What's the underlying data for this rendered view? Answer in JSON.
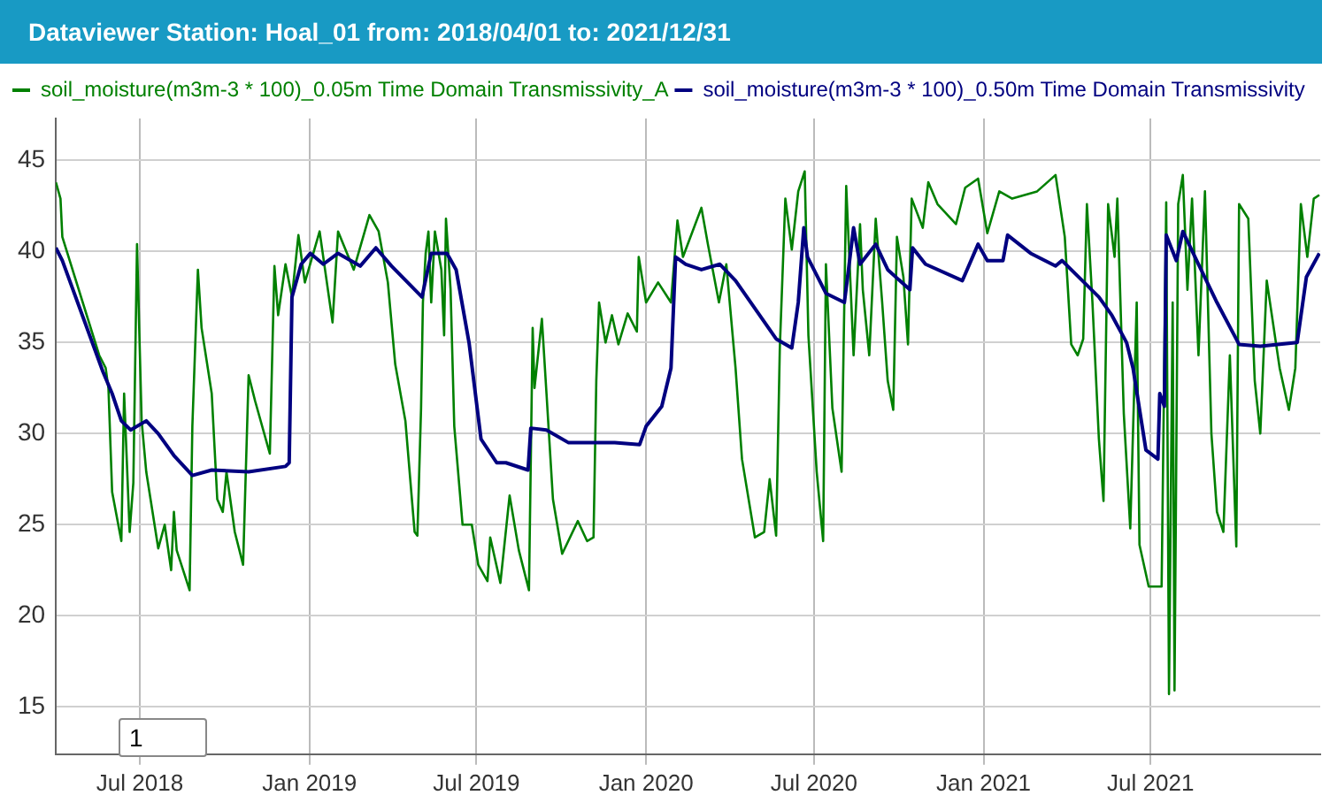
{
  "chart_data": {
    "type": "line",
    "title": "Dataviewer Station: Hoal_01 from: 2018/04/01 to: 2021/12/31",
    "legend": "top left",
    "grid": true,
    "marker": "none",
    "line_style": "solid",
    "xlim": [
      "2018-04-01",
      "2022-01-01"
    ],
    "xticks": [
      {
        "value": "2018-07-01",
        "label": "Jul 2018"
      },
      {
        "value": "2019-01-01",
        "label": "Jan 2019"
      },
      {
        "value": "2019-07-01",
        "label": "Jul 2019"
      },
      {
        "value": "2020-01-01",
        "label": "Jan 2020"
      },
      {
        "value": "2020-07-01",
        "label": "Jul 2020"
      },
      {
        "value": "2021-01-01",
        "label": "Jan 2021"
      },
      {
        "value": "2021-07-01",
        "label": "Jul 2021"
      }
    ],
    "ylim": [
      12.4,
      47.3
    ],
    "yticks": [
      15,
      20,
      25,
      30,
      35,
      40,
      45
    ],
    "annotations": [
      "1"
    ],
    "series": [
      {
        "name": "soil_moisture(m3m-3 * 100)_0.05m Time Domain Transmissivity_A",
        "color": "#008000",
        "x": [
          "2018-04-01",
          "2018-04-06",
          "2018-04-08",
          "2018-05-18",
          "2018-05-25",
          "2018-05-28",
          "2018-06-01",
          "2018-06-11",
          "2018-06-14",
          "2018-06-20",
          "2018-06-24",
          "2018-06-28",
          "2018-07-03",
          "2018-07-08",
          "2018-07-21",
          "2018-07-28",
          "2018-08-04",
          "2018-08-07",
          "2018-08-10",
          "2018-08-24",
          "2018-08-27",
          "2018-09-02",
          "2018-09-06",
          "2018-09-17",
          "2018-09-23",
          "2018-09-29",
          "2018-10-03",
          "2018-10-12",
          "2018-10-21",
          "2018-10-27",
          "2018-11-03",
          "2018-11-19",
          "2018-11-24",
          "2018-11-28",
          "2018-12-06",
          "2018-12-13",
          "2018-12-20",
          "2018-12-27",
          "2019-01-12",
          "2019-01-19",
          "2019-01-26",
          "2019-02-01",
          "2019-02-18",
          "2019-03-07",
          "2019-03-17",
          "2019-03-27",
          "2019-04-04",
          "2019-04-15",
          "2019-04-25",
          "2019-04-28",
          "2019-05-02",
          "2019-05-04",
          "2019-05-07",
          "2019-05-10",
          "2019-05-13",
          "2019-05-17",
          "2019-05-24",
          "2019-05-27",
          "2019-05-29",
          "2019-06-03",
          "2019-06-07",
          "2019-06-16",
          "2019-06-26",
          "2019-07-03",
          "2019-07-13",
          "2019-07-16",
          "2019-07-27",
          "2019-08-06",
          "2019-08-16",
          "2019-08-27",
          "2019-08-31",
          "2019-09-02",
          "2019-09-10",
          "2019-09-15",
          "2019-09-22",
          "2019-10-02",
          "2019-10-19",
          "2019-10-29",
          "2019-11-05",
          "2019-11-08",
          "2019-11-11",
          "2019-11-18",
          "2019-11-25",
          "2019-12-02",
          "2019-12-12",
          "2019-12-22",
          "2019-12-24",
          "2020-01-01",
          "2020-01-14",
          "2020-01-28",
          "2020-02-04",
          "2020-02-10",
          "2020-03-01",
          "2020-03-08",
          "2020-03-20",
          "2020-03-28",
          "2020-04-07",
          "2020-04-14",
          "2020-04-28",
          "2020-05-08",
          "2020-05-14",
          "2020-05-21",
          "2020-05-25",
          "2020-05-31",
          "2020-06-07",
          "2020-06-14",
          "2020-06-21",
          "2020-06-25",
          "2020-07-04",
          "2020-07-11",
          "2020-07-14",
          "2020-07-21",
          "2020-07-31",
          "2020-08-05",
          "2020-08-13",
          "2020-08-20",
          "2020-08-23",
          "2020-08-30",
          "2020-09-06",
          "2020-09-13",
          "2020-09-19",
          "2020-09-25",
          "2020-09-29",
          "2020-10-06",
          "2020-10-11",
          "2020-10-15",
          "2020-10-27",
          "2020-11-02",
          "2020-11-12",
          "2020-12-02",
          "2020-12-12",
          "2020-12-26",
          "2021-01-05",
          "2021-01-18",
          "2021-02-01",
          "2021-02-28",
          "2021-03-20",
          "2021-03-30",
          "2021-04-06",
          "2021-04-13",
          "2021-04-19",
          "2021-04-23",
          "2021-04-29",
          "2021-05-06",
          "2021-05-11",
          "2021-05-16",
          "2021-05-23",
          "2021-05-26",
          "2021-06-02",
          "2021-06-09",
          "2021-06-16",
          "2021-06-19",
          "2021-06-29",
          "2021-07-13",
          "2021-07-18",
          "2021-07-21",
          "2021-07-25",
          "2021-07-27",
          "2021-07-31",
          "2021-08-05",
          "2021-08-10",
          "2021-08-15",
          "2021-08-22",
          "2021-08-29",
          "2021-09-05",
          "2021-09-11",
          "2021-09-18",
          "2021-09-25",
          "2021-10-02",
          "2021-10-05",
          "2021-10-15",
          "2021-10-22",
          "2021-10-28",
          "2021-11-04",
          "2021-11-18",
          "2021-11-28",
          "2021-12-05",
          "2021-12-11",
          "2021-12-18",
          "2021-12-25",
          "2021-12-31"
        ],
        "values": [
          43.8,
          42.9,
          40.8,
          34.3,
          33.6,
          32.5,
          26.8,
          24.1,
          32.2,
          24.6,
          27.3,
          40.4,
          30.7,
          27.9,
          23.7,
          25.0,
          22.5,
          25.7,
          23.6,
          21.4,
          30.4,
          39.0,
          35.8,
          32.2,
          26.4,
          25.7,
          27.9,
          24.6,
          22.8,
          33.2,
          31.8,
          28.9,
          39.2,
          36.5,
          39.3,
          37.5,
          40.9,
          38.3,
          41.1,
          38.6,
          36.1,
          41.1,
          39.0,
          42.0,
          41.1,
          38.3,
          33.8,
          30.7,
          24.6,
          24.4,
          31.4,
          37.2,
          39.9,
          41.1,
          37.2,
          41.1,
          39.0,
          35.4,
          41.8,
          37.9,
          30.4,
          25.0,
          25.0,
          22.8,
          21.9,
          24.3,
          21.8,
          26.6,
          23.6,
          21.4,
          35.8,
          32.5,
          36.3,
          32.2,
          26.4,
          23.4,
          25.2,
          24.1,
          24.3,
          32.9,
          37.2,
          35.0,
          36.5,
          34.9,
          36.6,
          35.6,
          39.7,
          37.2,
          38.3,
          37.2,
          41.7,
          39.7,
          42.4,
          40.4,
          37.2,
          39.3,
          33.6,
          28.6,
          24.3,
          24.6,
          27.5,
          24.4,
          34.7,
          42.9,
          40.1,
          43.3,
          44.4,
          35.4,
          27.9,
          24.1,
          39.3,
          31.4,
          27.9,
          43.6,
          34.3,
          41.5,
          37.9,
          34.3,
          41.8,
          37.2,
          32.9,
          31.3,
          40.8,
          38.6,
          34.9,
          42.9,
          41.3,
          43.8,
          42.6,
          41.5,
          43.5,
          44.0,
          41.0,
          43.3,
          42.9,
          43.3,
          44.2,
          40.8,
          34.9,
          34.3,
          35.2,
          42.6,
          37.2,
          29.7,
          26.3,
          42.6,
          39.7,
          42.9,
          31.1,
          24.8,
          37.2,
          23.9,
          21.6,
          21.6,
          42.7,
          15.7,
          37.2,
          15.9,
          42.6,
          44.2,
          37.9,
          42.9,
          34.3,
          43.3,
          30.0,
          25.7,
          24.6,
          34.3,
          23.8,
          42.6,
          41.8,
          32.9,
          30.0,
          38.4,
          33.6,
          31.3,
          33.6,
          42.6,
          39.7,
          42.9,
          43.1
        ]
      },
      {
        "name": "soil_moisture(m3m-3 * 100)_0.50m Time Domain Transmissivity",
        "color": "#000080",
        "x": [
          "2018-04-01",
          "2018-04-08",
          "2018-05-22",
          "2018-06-01",
          "2018-06-11",
          "2018-06-21",
          "2018-07-08",
          "2018-07-21",
          "2018-08-07",
          "2018-08-27",
          "2018-09-17",
          "2018-10-27",
          "2018-12-06",
          "2018-12-10",
          "2018-12-13",
          "2018-12-23",
          "2019-01-02",
          "2019-01-16",
          "2019-02-01",
          "2019-02-25",
          "2019-03-14",
          "2019-03-31",
          "2019-05-03",
          "2019-05-13",
          "2019-05-30",
          "2019-06-09",
          "2019-06-23",
          "2019-07-06",
          "2019-07-23",
          "2019-08-02",
          "2019-08-26",
          "2019-08-29",
          "2019-09-15",
          "2019-10-09",
          "2019-11-28",
          "2019-12-25",
          "2020-01-01",
          "2020-01-18",
          "2020-01-28",
          "2020-02-02",
          "2020-02-13",
          "2020-03-01",
          "2020-03-21",
          "2020-04-07",
          "2020-05-21",
          "2020-06-07",
          "2020-06-14",
          "2020-06-20",
          "2020-06-24",
          "2020-07-14",
          "2020-08-03",
          "2020-08-07",
          "2020-08-13",
          "2020-08-20",
          "2020-09-06",
          "2020-09-19",
          "2020-10-13",
          "2020-10-16",
          "2020-10-30",
          "2020-12-09",
          "2020-12-26",
          "2021-01-05",
          "2021-01-22",
          "2021-01-27",
          "2021-02-21",
          "2021-03-20",
          "2021-03-27",
          "2021-05-06",
          "2021-05-20",
          "2021-06-05",
          "2021-06-12",
          "2021-06-26",
          "2021-07-09",
          "2021-07-11",
          "2021-07-16",
          "2021-07-18",
          "2021-07-29",
          "2021-08-05",
          "2021-08-22",
          "2021-09-11",
          "2021-10-05",
          "2021-10-28",
          "2021-12-07",
          "2021-12-17",
          "2021-12-31"
        ],
        "values": [
          40.2,
          39.5,
          33.4,
          32.2,
          30.7,
          30.2,
          30.7,
          30.0,
          28.8,
          27.7,
          28.0,
          27.9,
          28.2,
          28.4,
          37.5,
          39.3,
          39.9,
          39.3,
          39.9,
          39.2,
          40.2,
          39.2,
          37.5,
          39.9,
          39.9,
          39.0,
          35.0,
          29.7,
          28.4,
          28.4,
          28.0,
          30.3,
          30.2,
          29.5,
          29.5,
          29.4,
          30.4,
          31.5,
          33.6,
          39.7,
          39.3,
          39.0,
          39.3,
          38.4,
          35.2,
          34.7,
          37.2,
          41.3,
          39.7,
          37.7,
          37.2,
          38.8,
          41.3,
          39.3,
          40.4,
          39.0,
          37.9,
          40.2,
          39.3,
          38.4,
          40.4,
          39.5,
          39.5,
          40.9,
          39.9,
          39.2,
          39.5,
          37.5,
          36.5,
          35.0,
          33.6,
          29.1,
          28.6,
          32.2,
          31.5,
          40.9,
          39.5,
          41.1,
          39.3,
          37.2,
          34.9,
          34.8,
          35.0,
          38.6,
          39.9
        ]
      }
    ]
  }
}
